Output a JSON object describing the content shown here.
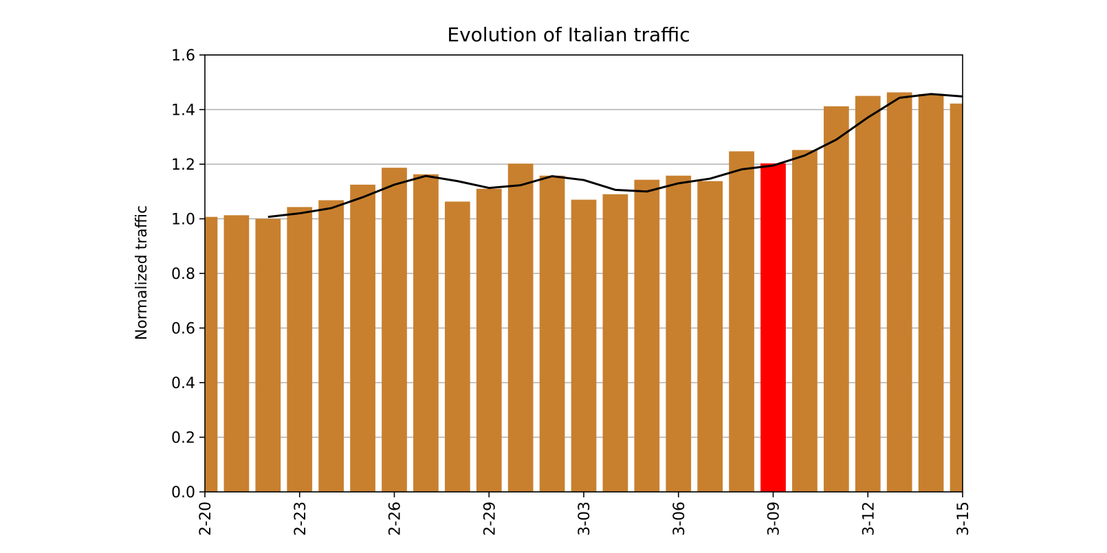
{
  "chart_data": {
    "type": "bar",
    "title": "Evolution of Italian traffic",
    "xlabel": "",
    "ylabel": "Normalized traffic",
    "ylim": [
      0,
      1.6
    ],
    "yticks": [
      "0.0",
      "0.2",
      "0.4",
      "0.6",
      "0.8",
      "1.0",
      "1.2",
      "1.4",
      "1.6"
    ],
    "grid": "horizontal",
    "categories": [
      "02-20",
      "02-21",
      "02-22",
      "02-23",
      "02-24",
      "02-25",
      "02-26",
      "02-27",
      "02-28",
      "02-29",
      "03-01",
      "03-02",
      "03-03",
      "03-04",
      "03-05",
      "03-06",
      "03-07",
      "03-08",
      "03-09",
      "03-10",
      "03-11",
      "03-12",
      "03-13",
      "03-14",
      "03-15"
    ],
    "xtick_labels": [
      {
        "category": "02-20",
        "text": "2-20"
      },
      {
        "category": "02-23",
        "text": "2-23"
      },
      {
        "category": "02-26",
        "text": "2-26"
      },
      {
        "category": "02-29",
        "text": "2-29"
      },
      {
        "category": "03-03",
        "text": "3-03"
      },
      {
        "category": "03-06",
        "text": "3-06"
      },
      {
        "category": "03-09",
        "text": "3-09"
      },
      {
        "category": "03-12",
        "text": "3-12"
      },
      {
        "category": "03-15",
        "text": "3-15"
      }
    ],
    "series": [
      {
        "type": "bar",
        "values": [
          1.007,
          1.013,
          1.0,
          1.043,
          1.068,
          1.125,
          1.187,
          1.163,
          1.063,
          1.11,
          1.202,
          1.158,
          1.07,
          1.09,
          1.143,
          1.158,
          1.138,
          1.247,
          1.203,
          1.252,
          1.412,
          1.45,
          1.463,
          1.457,
          1.422
        ],
        "color": "#c8802e",
        "highlight": {
          "category": "03-09",
          "color": "#ff0000"
        }
      },
      {
        "type": "line",
        "x": [
          "02-22",
          "02-23",
          "02-24",
          "02-25",
          "02-26",
          "02-27",
          "02-28",
          "02-29",
          "03-01",
          "03-02",
          "03-03",
          "03-04",
          "03-05",
          "03-06",
          "03-07",
          "03-08",
          "03-09",
          "03-10",
          "03-11",
          "03-12",
          "03-13",
          "03-14",
          "03-15"
        ],
        "values": [
          1.007,
          1.02,
          1.039,
          1.079,
          1.125,
          1.157,
          1.138,
          1.113,
          1.123,
          1.156,
          1.142,
          1.106,
          1.1,
          1.13,
          1.147,
          1.181,
          1.195,
          1.232,
          1.29,
          1.371,
          1.443,
          1.457,
          1.448
        ],
        "color": "#000000"
      }
    ]
  }
}
